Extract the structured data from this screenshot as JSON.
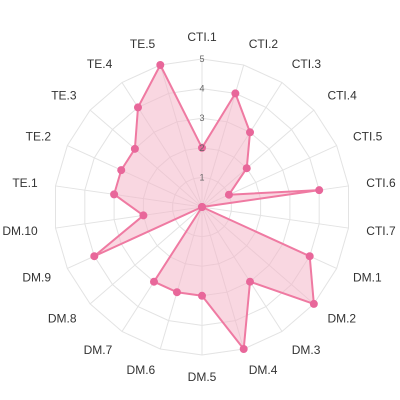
{
  "chart_data": {
    "type": "radar",
    "axes": [
      "CTI.1",
      "CTI.2",
      "CTI.3",
      "CTI.4",
      "CTI.5",
      "CTI.6",
      "CTI.7",
      "DM.1",
      "DM.2",
      "DM.3",
      "DM.4",
      "DM.5",
      "DM.6",
      "DM.7",
      "DM.8",
      "DM.9",
      "DM.10",
      "TE.1",
      "TE.2",
      "TE.3",
      "TE.4",
      "TE.5"
    ],
    "series": [
      {
        "values": [
          2,
          4,
          3,
          2,
          1,
          4,
          0,
          4,
          5,
          3,
          5,
          3,
          3,
          3,
          0,
          4,
          2,
          3,
          3,
          3,
          4,
          5
        ]
      }
    ],
    "r_ticks": [
      1,
      2,
      3,
      4,
      5
    ],
    "r_range": [
      0,
      5
    ],
    "grid": true,
    "legend": "none",
    "colors": {
      "line": "#ef7aa2",
      "fill": "#f4b6c8",
      "point": "#e8679a",
      "grid": "#e3e3e3"
    }
  }
}
